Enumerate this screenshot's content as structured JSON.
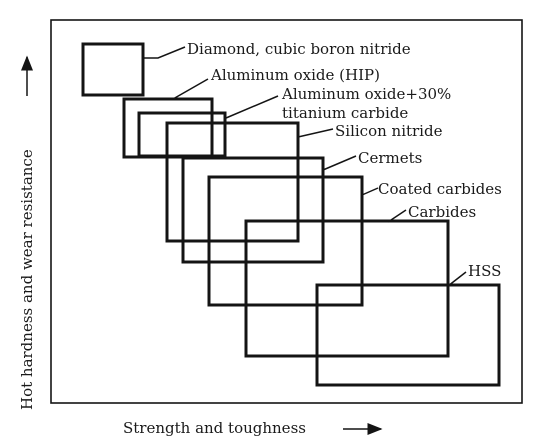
{
  "axes": {
    "x_label": "Strength and toughness",
    "y_label": "Hot hardness and wear resistance"
  },
  "materials": [
    {
      "label": "Diamond, cubic boron nitride"
    },
    {
      "label": "Aluminum oxide (HIP)"
    },
    {
      "label_line1": "Aluminum oxide+30%",
      "label_line2": "titanium carbide"
    },
    {
      "label": "Silicon nitride"
    },
    {
      "label": "Cermets"
    },
    {
      "label": "Coated carbides"
    },
    {
      "label": "Carbides"
    },
    {
      "label": "HSS"
    }
  ]
}
